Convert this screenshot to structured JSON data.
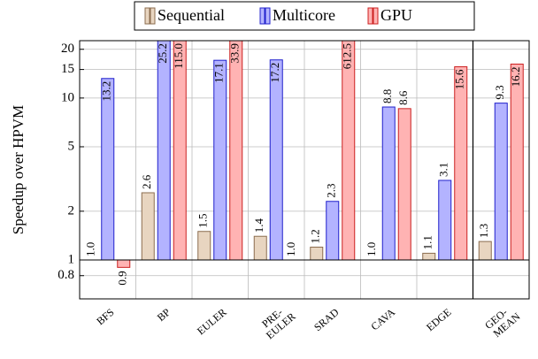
{
  "chart_data": {
    "type": "bar",
    "ylabel": "Speedup over HPVM",
    "log_scale": true,
    "categories": [
      [
        "BFS"
      ],
      [
        "BP"
      ],
      [
        "EULER"
      ],
      [
        "PRE-",
        "EULER"
      ],
      [
        "SRAD"
      ],
      [
        "CAVA"
      ],
      [
        "EDGE"
      ],
      [
        "GEO-",
        "MEAN"
      ]
    ],
    "series": [
      {
        "name": "Sequential",
        "color": "#e8d5c0",
        "edge": "#8b6d4f",
        "values": [
          1.0,
          2.6,
          1.5,
          1.4,
          1.2,
          1.0,
          1.1,
          1.3
        ],
        "value_labels": [
          "1.0",
          "2.6",
          "1.5",
          "1.4",
          "1.2",
          "1.0",
          "1.1",
          "1.3"
        ]
      },
      {
        "name": "Multicore",
        "color": "#b3b3ff",
        "edge": "#2020cc",
        "values": [
          13.2,
          25.2,
          17.1,
          17.2,
          2.3,
          8.8,
          3.1,
          9.3
        ],
        "value_labels": [
          "13.2",
          "25.2",
          "17.1",
          "17.2",
          "2.3",
          "8.8",
          "3.1",
          "9.3"
        ]
      },
      {
        "name": "GPU",
        "color": "#ffb3b3",
        "edge": "#cc2020",
        "values": [
          0.9,
          115.0,
          33.9,
          1.0,
          612.5,
          8.6,
          15.6,
          16.2
        ],
        "value_labels": [
          "0.9",
          "115.0",
          "33.9",
          "1.0",
          "612.5",
          "8.6",
          "15.6",
          "16.2"
        ]
      }
    ],
    "ylim": [
      0.575,
      22.6
    ],
    "yticks": [
      0.8,
      1,
      2,
      5,
      10,
      15,
      20
    ],
    "grid": true,
    "legend": "top"
  }
}
